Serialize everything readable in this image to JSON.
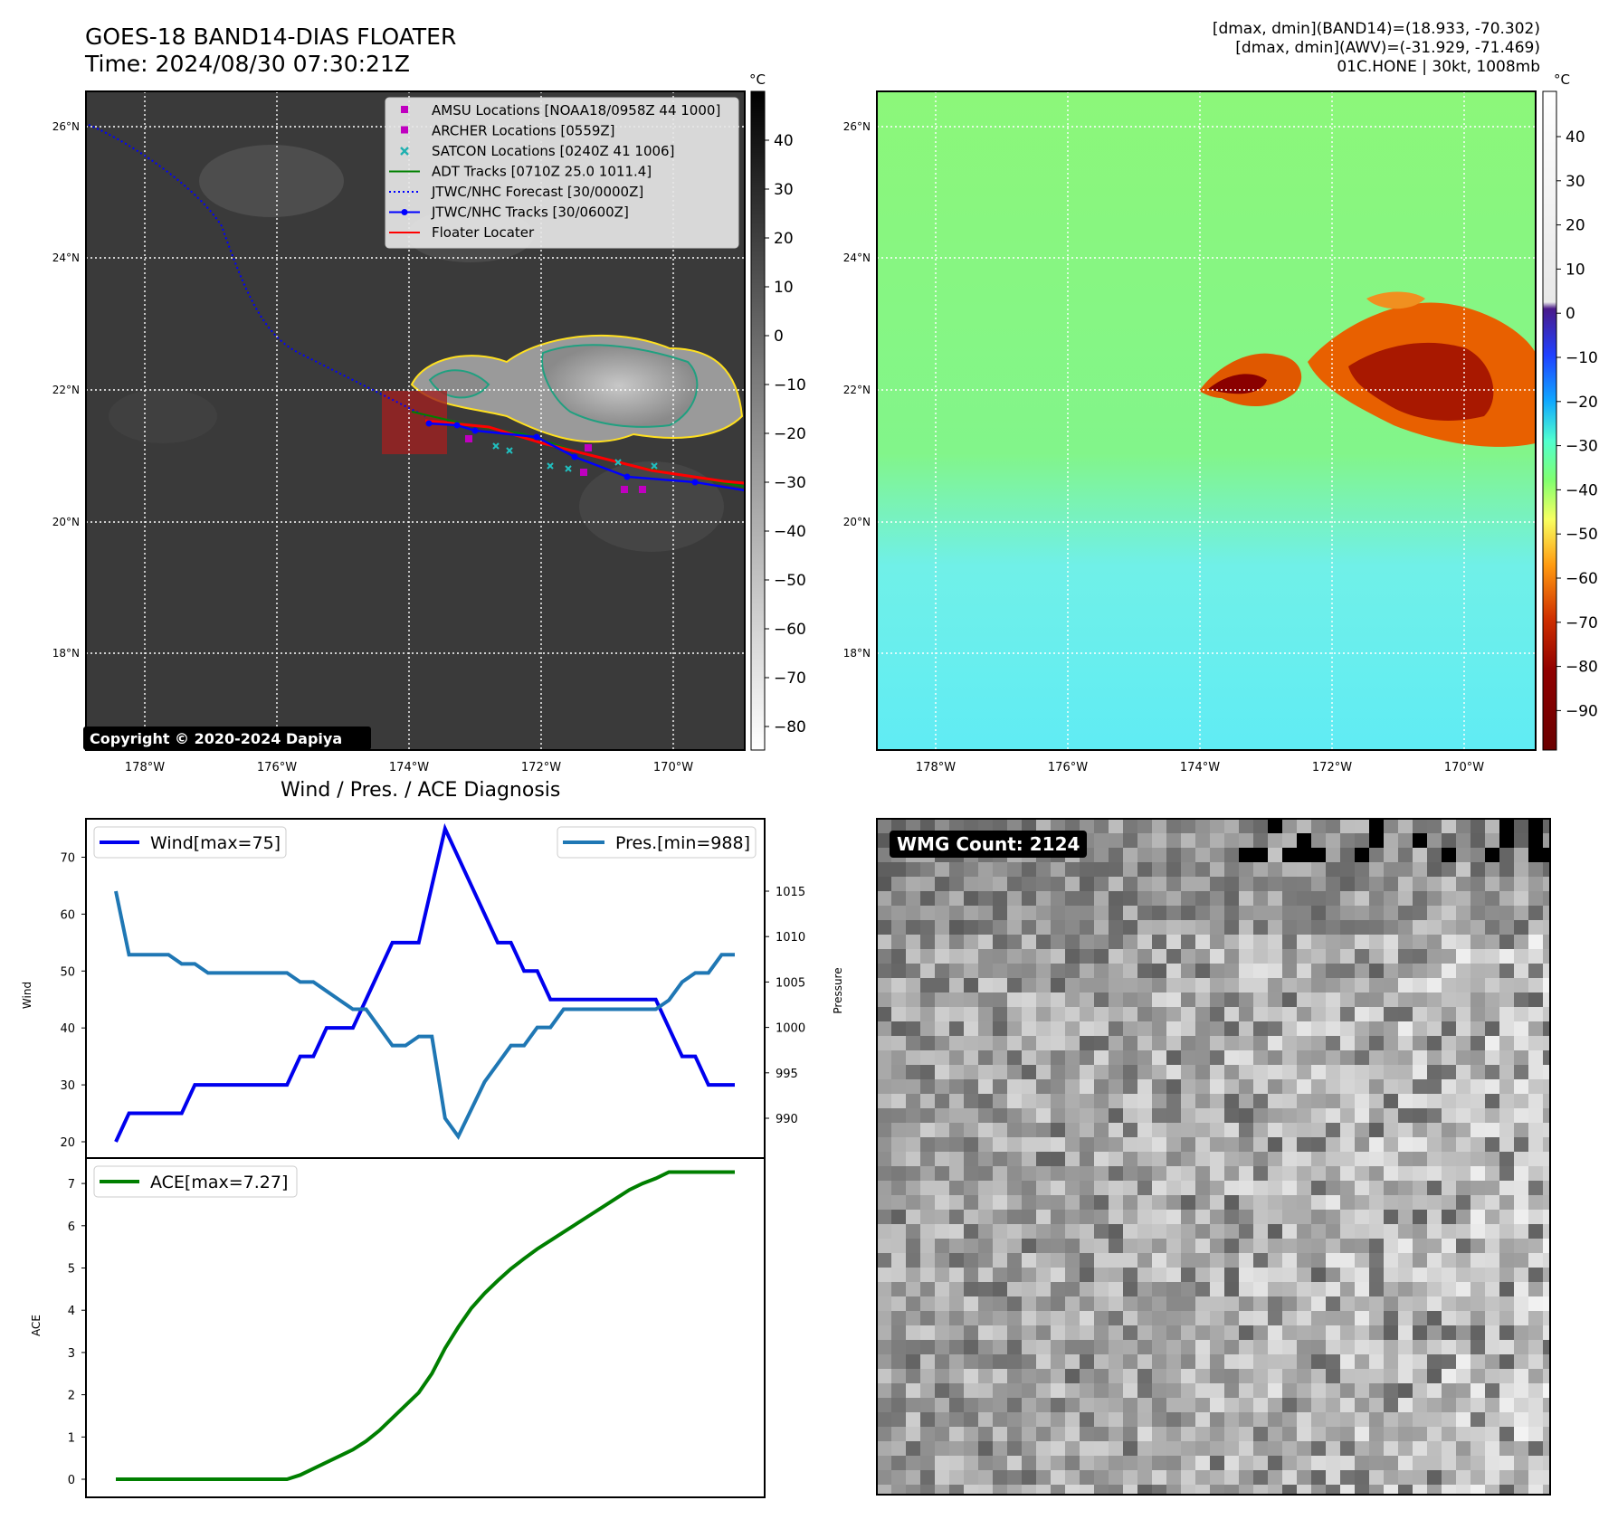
{
  "header": {
    "title": "GOES-18 BAND14-DIAS FLOATER",
    "time": "Time: 2024/08/30 07:30:21Z",
    "info_line1": "[dmax, dmin](BAND14)=(18.933, -70.302)",
    "info_line2": "[dmax, dmin](AWV)=(-31.929, -71.469)",
    "info_line3": "01C.HONE | 30kt, 1008mb"
  },
  "map": {
    "lat_labels": [
      "26°N",
      "24°N",
      "22°N",
      "20°N",
      "18°N"
    ],
    "lon_labels": [
      "178°W",
      "176°W",
      "174°W",
      "172°W",
      "170°W"
    ],
    "copyright": "Copyright © 2020-2024 Dapiya",
    "colorbar_unit": "°C",
    "colorbar_left_ticks": [
      "40",
      "30",
      "20",
      "10",
      "0",
      "−10",
      "−20",
      "−30",
      "−40",
      "−50",
      "−60",
      "−70",
      "−80"
    ],
    "colorbar_right_ticks": [
      "40",
      "30",
      "20",
      "10",
      "0",
      "−10",
      "−20",
      "−30",
      "−40",
      "−50",
      "−60",
      "−70",
      "−80",
      "−90"
    ],
    "legend": [
      {
        "label": "AMSU Locations [NOAA18/0958Z 44 1000]",
        "color": "#c000c0",
        "marker": "square"
      },
      {
        "label": "ARCHER Locations [0559Z]",
        "color": "#c000c0",
        "marker": "square"
      },
      {
        "label": "SATCON Locations [0240Z 41 1006]",
        "color": "#20b0b0",
        "marker": "x"
      },
      {
        "label": "ADT Tracks [0710Z 25.0 1011.4]",
        "color": "#008000",
        "marker": "line"
      },
      {
        "label": "JTWC/NHC Forecast [30/0000Z]",
        "color": "#0000ff",
        "marker": "dotted"
      },
      {
        "label": "JTWC/NHC Tracks [30/0600Z]",
        "color": "#0000ff",
        "marker": "line-dot"
      },
      {
        "label": "Floater Locater",
        "color": "#ff0000",
        "marker": "line"
      }
    ]
  },
  "diagnosis": {
    "title": "Wind / Pres. / ACE Diagnosis",
    "wind_legend": "Wind[max=75]",
    "pres_legend": "Pres.[min=988]",
    "ace_legend": "ACE[max=7.27]",
    "wind_axis_label": "Wind",
    "pres_axis_label": "Pressure",
    "ace_axis_label": "ACE"
  },
  "wmg": {
    "label": "WMG Count: 2124"
  },
  "colors": {
    "wind": "#0000ee",
    "pressure": "#1f77b4",
    "ace": "#007f00"
  },
  "chart_data": [
    {
      "type": "line",
      "x": [
        0,
        1,
        2,
        3,
        4,
        5,
        6,
        7,
        8,
        9,
        10,
        11,
        12,
        13,
        14,
        15,
        16,
        17,
        18,
        19,
        20,
        21,
        22,
        23,
        24,
        25,
        26,
        27,
        28,
        29,
        30,
        31,
        32,
        33,
        34,
        35,
        36,
        37,
        38,
        39,
        40,
        41,
        42,
        43,
        44,
        45,
        46,
        47
      ],
      "series": [
        {
          "name": "Wind[max=75]",
          "values": [
            20,
            25,
            25,
            25,
            25,
            25,
            30,
            30,
            30,
            30,
            30,
            30,
            30,
            30,
            35,
            35,
            40,
            40,
            40,
            45,
            50,
            55,
            55,
            55,
            65,
            75,
            70,
            65,
            60,
            55,
            55,
            50,
            50,
            45,
            45,
            45,
            45,
            45,
            45,
            45,
            45,
            45,
            40,
            35,
            35,
            30,
            30,
            30
          ]
        },
        {
          "name": "Pres.[min=988]",
          "values": [
            1015,
            1008,
            1008,
            1008,
            1008,
            1007,
            1007,
            1006,
            1006,
            1006,
            1006,
            1006,
            1006,
            1006,
            1005,
            1005,
            1004,
            1003,
            1002,
            1002,
            1000,
            998,
            998,
            999,
            999,
            990,
            988,
            991,
            994,
            996,
            998,
            998,
            1000,
            1000,
            1002,
            1002,
            1002,
            1002,
            1002,
            1002,
            1002,
            1002,
            1003,
            1005,
            1006,
            1006,
            1008,
            1008
          ]
        }
      ],
      "yaxes": {
        "left": {
          "label": "Wind",
          "ticks": [
            20,
            30,
            40,
            50,
            60,
            70
          ]
        },
        "right": {
          "label": "Pressure",
          "ticks": [
            990,
            995,
            1000,
            1005,
            1010,
            1015
          ]
        }
      }
    },
    {
      "type": "line",
      "x": [
        0,
        1,
        2,
        3,
        4,
        5,
        6,
        7,
        8,
        9,
        10,
        11,
        12,
        13,
        14,
        15,
        16,
        17,
        18,
        19,
        20,
        21,
        22,
        23,
        24,
        25,
        26,
        27,
        28,
        29,
        30,
        31,
        32,
        33,
        34,
        35,
        36,
        37,
        38,
        39,
        40,
        41,
        42,
        43,
        44,
        45,
        46,
        47
      ],
      "series": [
        {
          "name": "ACE[max=7.27]",
          "values": [
            0,
            0,
            0,
            0,
            0,
            0,
            0,
            0,
            0,
            0,
            0,
            0,
            0,
            0,
            0.1,
            0.25,
            0.4,
            0.55,
            0.7,
            0.9,
            1.15,
            1.45,
            1.75,
            2.05,
            2.5,
            3.1,
            3.6,
            4.05,
            4.4,
            4.7,
            4.98,
            5.22,
            5.45,
            5.65,
            5.85,
            6.05,
            6.25,
            6.45,
            6.65,
            6.85,
            7.0,
            7.12,
            7.27,
            7.27,
            7.27,
            7.27,
            7.27,
            7.27
          ]
        }
      ],
      "yaxes": {
        "left": {
          "label": "ACE",
          "ticks": [
            0,
            1,
            2,
            3,
            4,
            5,
            6,
            7
          ]
        }
      }
    }
  ]
}
